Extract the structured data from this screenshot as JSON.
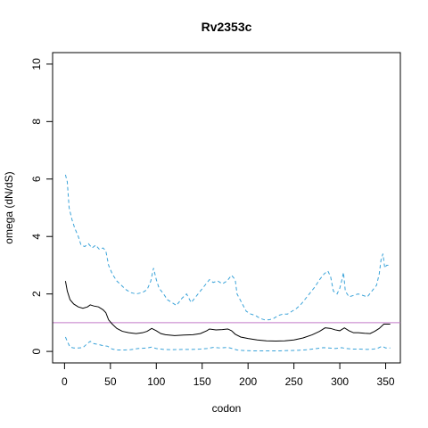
{
  "chart_data": {
    "type": "line",
    "title": "Rv2353c",
    "xlabel": "codon",
    "ylabel": "omega (dN/dS)",
    "xlim": [
      -13,
      366
    ],
    "ylim": [
      -0.4,
      10.4
    ],
    "xticks": [
      0,
      50,
      100,
      150,
      200,
      250,
      300,
      350
    ],
    "yticks": [
      0,
      2,
      4,
      6,
      8,
      10
    ],
    "grid": false,
    "reference_line": {
      "y": 1,
      "color": "#c27ac9"
    },
    "series": [
      {
        "style": "solid",
        "color": "#000000",
        "points": [
          [
            1,
            2.45
          ],
          [
            3,
            2.1
          ],
          [
            6,
            1.8
          ],
          [
            10,
            1.65
          ],
          [
            15,
            1.55
          ],
          [
            20,
            1.5
          ],
          [
            25,
            1.55
          ],
          [
            28,
            1.62
          ],
          [
            32,
            1.58
          ],
          [
            37,
            1.55
          ],
          [
            42,
            1.45
          ],
          [
            45,
            1.35
          ],
          [
            48,
            1.1
          ],
          [
            52,
            0.95
          ],
          [
            57,
            0.8
          ],
          [
            63,
            0.7
          ],
          [
            70,
            0.65
          ],
          [
            78,
            0.62
          ],
          [
            85,
            0.65
          ],
          [
            90,
            0.7
          ],
          [
            95,
            0.8
          ],
          [
            100,
            0.72
          ],
          [
            105,
            0.62
          ],
          [
            110,
            0.58
          ],
          [
            120,
            0.55
          ],
          [
            130,
            0.57
          ],
          [
            140,
            0.58
          ],
          [
            148,
            0.62
          ],
          [
            155,
            0.72
          ],
          [
            158,
            0.78
          ],
          [
            165,
            0.75
          ],
          [
            172,
            0.76
          ],
          [
            178,
            0.78
          ],
          [
            182,
            0.72
          ],
          [
            186,
            0.6
          ],
          [
            192,
            0.5
          ],
          [
            200,
            0.45
          ],
          [
            210,
            0.4
          ],
          [
            220,
            0.37
          ],
          [
            230,
            0.36
          ],
          [
            240,
            0.37
          ],
          [
            250,
            0.4
          ],
          [
            260,
            0.47
          ],
          [
            270,
            0.58
          ],
          [
            278,
            0.7
          ],
          [
            284,
            0.82
          ],
          [
            290,
            0.8
          ],
          [
            295,
            0.75
          ],
          [
            300,
            0.72
          ],
          [
            305,
            0.82
          ],
          [
            310,
            0.72
          ],
          [
            315,
            0.65
          ],
          [
            320,
            0.65
          ],
          [
            327,
            0.63
          ],
          [
            333,
            0.62
          ],
          [
            338,
            0.7
          ],
          [
            343,
            0.8
          ],
          [
            348,
            0.95
          ],
          [
            355,
            0.95
          ]
        ]
      },
      {
        "style": "dashed",
        "color": "#3aa3d9",
        "points": [
          [
            1,
            6.15
          ],
          [
            3,
            5.9
          ],
          [
            5,
            5.0
          ],
          [
            8,
            4.6
          ],
          [
            11,
            4.3
          ],
          [
            15,
            4.0
          ],
          [
            18,
            3.7
          ],
          [
            22,
            3.65
          ],
          [
            26,
            3.75
          ],
          [
            30,
            3.6
          ],
          [
            34,
            3.7
          ],
          [
            38,
            3.55
          ],
          [
            42,
            3.6
          ],
          [
            45,
            3.5
          ],
          [
            48,
            3.0
          ],
          [
            52,
            2.7
          ],
          [
            57,
            2.45
          ],
          [
            62,
            2.3
          ],
          [
            67,
            2.15
          ],
          [
            72,
            2.05
          ],
          [
            78,
            2.0
          ],
          [
            85,
            2.05
          ],
          [
            90,
            2.15
          ],
          [
            94,
            2.45
          ],
          [
            97,
            2.9
          ],
          [
            100,
            2.5
          ],
          [
            103,
            2.2
          ],
          [
            108,
            2.0
          ],
          [
            112,
            1.8
          ],
          [
            117,
            1.7
          ],
          [
            122,
            1.6
          ],
          [
            128,
            1.85
          ],
          [
            133,
            2.0
          ],
          [
            138,
            1.7
          ],
          [
            143,
            1.9
          ],
          [
            148,
            2.1
          ],
          [
            153,
            2.3
          ],
          [
            158,
            2.5
          ],
          [
            162,
            2.4
          ],
          [
            167,
            2.45
          ],
          [
            172,
            2.35
          ],
          [
            177,
            2.45
          ],
          [
            182,
            2.65
          ],
          [
            186,
            2.5
          ],
          [
            188,
            2.0
          ],
          [
            193,
            1.7
          ],
          [
            198,
            1.4
          ],
          [
            203,
            1.3
          ],
          [
            208,
            1.25
          ],
          [
            213,
            1.15
          ],
          [
            218,
            1.1
          ],
          [
            223,
            1.1
          ],
          [
            228,
            1.15
          ],
          [
            233,
            1.25
          ],
          [
            238,
            1.3
          ],
          [
            243,
            1.3
          ],
          [
            248,
            1.4
          ],
          [
            253,
            1.5
          ],
          [
            258,
            1.65
          ],
          [
            263,
            1.85
          ],
          [
            268,
            2.05
          ],
          [
            273,
            2.25
          ],
          [
            278,
            2.5
          ],
          [
            283,
            2.7
          ],
          [
            287,
            2.8
          ],
          [
            290,
            2.6
          ],
          [
            293,
            2.1
          ],
          [
            297,
            2.0
          ],
          [
            300,
            2.2
          ],
          [
            302,
            2.45
          ],
          [
            304,
            2.75
          ],
          [
            306,
            2.1
          ],
          [
            310,
            1.9
          ],
          [
            315,
            1.95
          ],
          [
            320,
            2.0
          ],
          [
            325,
            1.95
          ],
          [
            330,
            1.9
          ],
          [
            335,
            2.1
          ],
          [
            340,
            2.3
          ],
          [
            343,
            2.7
          ],
          [
            345,
            3.2
          ],
          [
            347,
            3.4
          ],
          [
            349,
            2.9
          ],
          [
            351,
            3.0
          ],
          [
            355,
            3.0
          ]
        ]
      },
      {
        "style": "dashed",
        "color": "#3aa3d9",
        "points": [
          [
            1,
            0.5
          ],
          [
            3,
            0.35
          ],
          [
            6,
            0.15
          ],
          [
            10,
            0.12
          ],
          [
            15,
            0.12
          ],
          [
            20,
            0.13
          ],
          [
            25,
            0.28
          ],
          [
            28,
            0.35
          ],
          [
            32,
            0.27
          ],
          [
            37,
            0.24
          ],
          [
            42,
            0.2
          ],
          [
            47,
            0.18
          ],
          [
            52,
            0.08
          ],
          [
            58,
            0.05
          ],
          [
            65,
            0.05
          ],
          [
            72,
            0.06
          ],
          [
            80,
            0.1
          ],
          [
            90,
            0.12
          ],
          [
            95,
            0.15
          ],
          [
            100,
            0.1
          ],
          [
            108,
            0.07
          ],
          [
            118,
            0.06
          ],
          [
            128,
            0.07
          ],
          [
            138,
            0.07
          ],
          [
            148,
            0.08
          ],
          [
            155,
            0.1
          ],
          [
            162,
            0.14
          ],
          [
            170,
            0.12
          ],
          [
            178,
            0.14
          ],
          [
            183,
            0.1
          ],
          [
            188,
            0.05
          ],
          [
            195,
            0.03
          ],
          [
            205,
            0.02
          ],
          [
            215,
            0.02
          ],
          [
            225,
            0.02
          ],
          [
            235,
            0.02
          ],
          [
            245,
            0.03
          ],
          [
            255,
            0.04
          ],
          [
            265,
            0.06
          ],
          [
            275,
            0.1
          ],
          [
            282,
            0.13
          ],
          [
            288,
            0.12
          ],
          [
            295,
            0.1
          ],
          [
            302,
            0.13
          ],
          [
            307,
            0.1
          ],
          [
            315,
            0.08
          ],
          [
            322,
            0.08
          ],
          [
            330,
            0.07
          ],
          [
            337,
            0.08
          ],
          [
            342,
            0.12
          ],
          [
            346,
            0.18
          ],
          [
            350,
            0.12
          ],
          [
            355,
            0.12
          ]
        ]
      }
    ]
  }
}
